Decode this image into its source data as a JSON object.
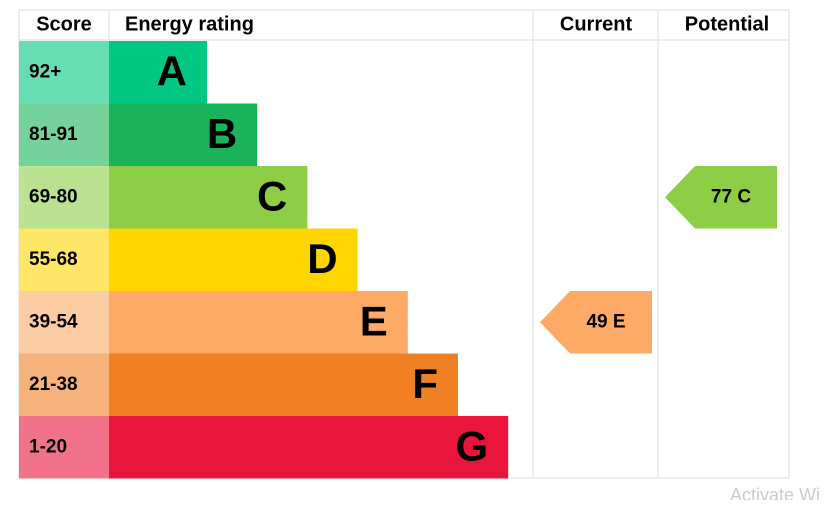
{
  "header": {
    "score": "Score",
    "rating": "Energy rating",
    "current": "Current",
    "potential": "Potential"
  },
  "bands": [
    {
      "range": "92+",
      "letter": "A",
      "color": "#00c781"
    },
    {
      "range": "81-91",
      "letter": "B",
      "color": "#19b459"
    },
    {
      "range": "69-80",
      "letter": "C",
      "color": "#8dce46"
    },
    {
      "range": "55-68",
      "letter": "D",
      "color": "#ffd500"
    },
    {
      "range": "39-54",
      "letter": "E",
      "color": "#fcaa65"
    },
    {
      "range": "21-38",
      "letter": "F",
      "color": "#ef8023"
    },
    {
      "range": "1-20",
      "letter": "G",
      "color": "#e9153b"
    }
  ],
  "current": {
    "label": "49 E",
    "band": 4
  },
  "potential": {
    "label": "77 C",
    "band": 2
  },
  "watermark": "Activate Wi"
}
